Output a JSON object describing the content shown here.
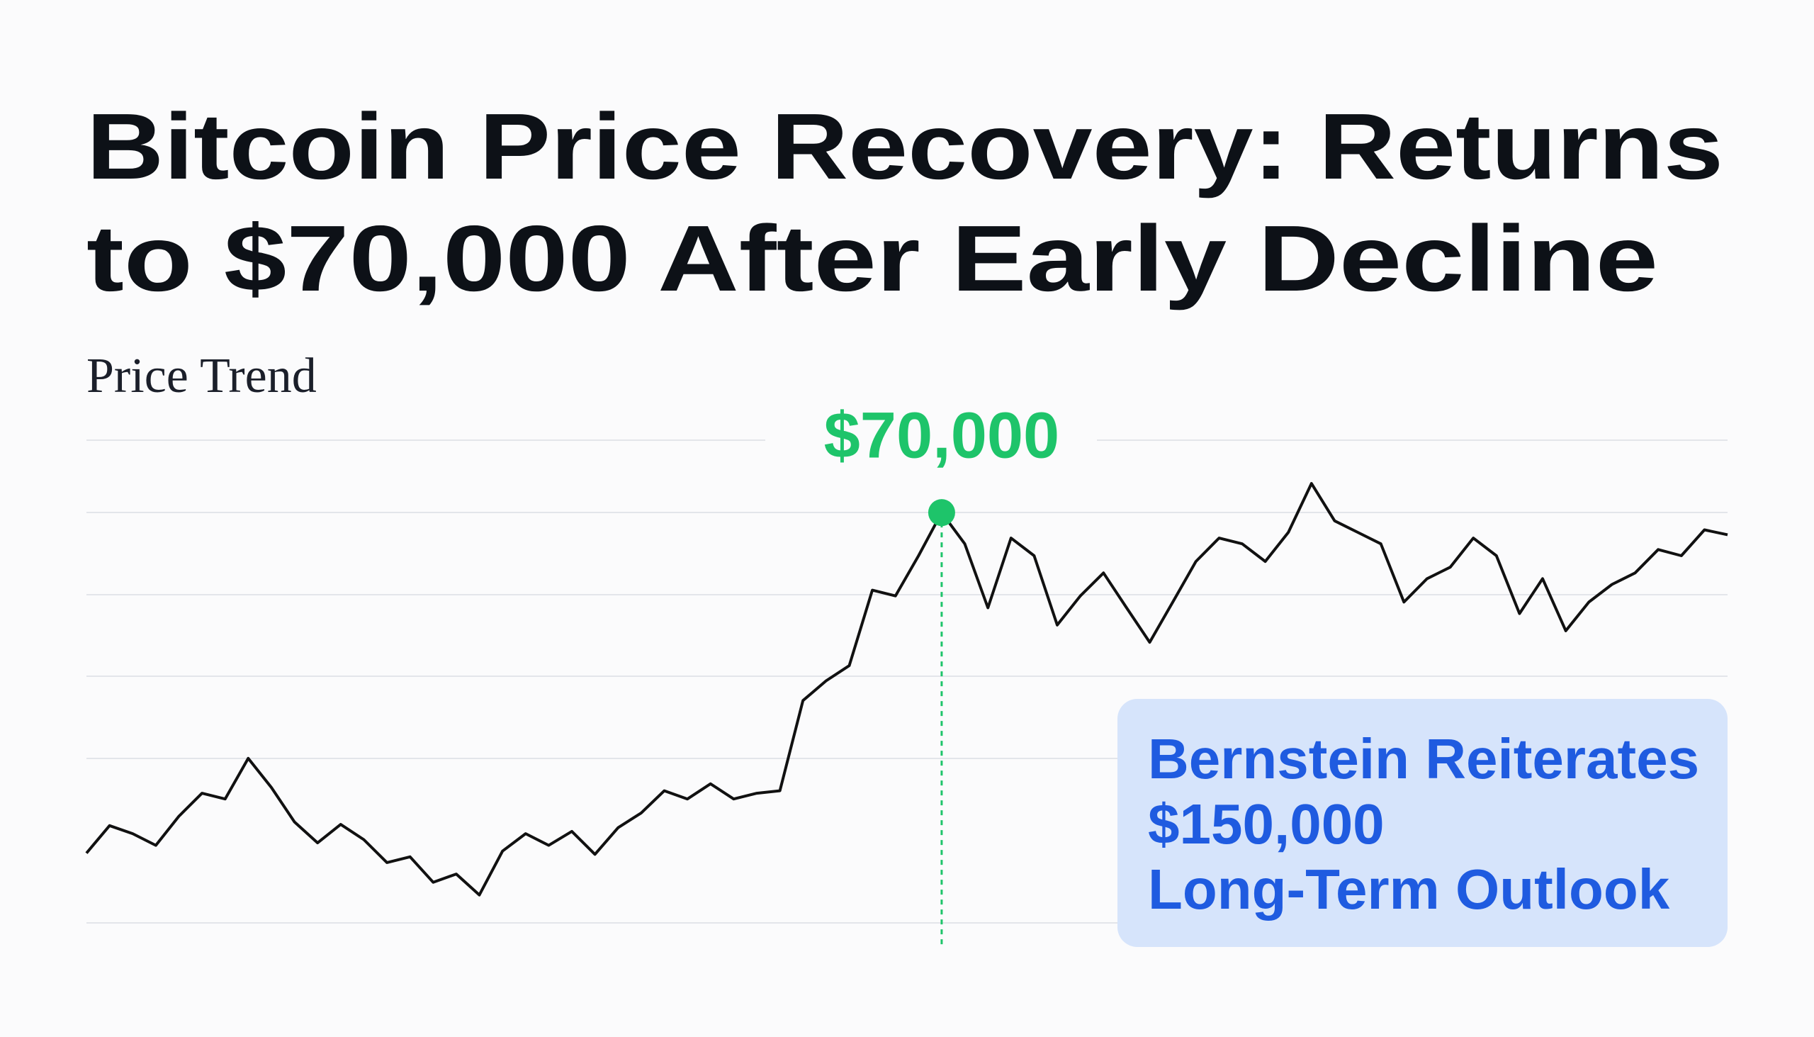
{
  "chart_data": {
    "type": "line",
    "title": [
      "Bitcoin Price Recovery: Returns",
      "to $70,000 After Early Decline"
    ],
    "subtitle": "Price Trend",
    "categories": [
      null,
      null,
      null,
      null,
      null,
      null,
      null,
      null,
      null,
      null,
      null,
      null,
      null,
      null,
      null,
      null,
      null,
      null,
      null,
      null,
      null,
      null,
      null,
      null,
      null,
      null,
      null,
      null,
      null,
      null,
      null,
      null,
      null,
      null,
      null,
      null,
      null,
      null,
      null,
      null,
      null,
      null,
      null,
      null,
      null,
      null,
      null,
      null,
      null,
      null,
      null,
      null,
      null,
      null,
      null,
      null,
      null,
      null,
      null,
      null,
      null,
      null,
      null,
      null,
      null,
      null,
      null,
      null,
      null,
      null,
      null,
      null
    ],
    "values": [
      61700,
      62370,
      62175,
      61890,
      62600,
      63160,
      63020,
      64010,
      63300,
      62460,
      61950,
      62400,
      62030,
      61470,
      61610,
      60990,
      61190,
      60680,
      61750,
      62175,
      61890,
      62230,
      61670,
      62320,
      62680,
      63220,
      63020,
      63390,
      63020,
      63160,
      63220,
      65420,
      65900,
      66270,
      68110,
      67970,
      68950,
      70000,
      69240,
      67680,
      69380,
      68950,
      67260,
      67970,
      68530,
      67680,
      66840,
      67820,
      68810,
      69380,
      69240,
      68810,
      69520,
      70710,
      69800,
      69520,
      69240,
      67820,
      68390,
      68670,
      69380,
      68950,
      67540,
      68390,
      67120,
      67820,
      68250,
      68530,
      69100,
      68950,
      69580,
      69460
    ],
    "color": "#111111",
    "ylim": [
      60000,
      71800
    ],
    "annotation": {
      "text": "$70,000",
      "index": 37,
      "color": "#1ec46a"
    },
    "callout": [
      "Bernstein Reiterates",
      "$150,000",
      "Long-Term Outlook"
    ]
  }
}
